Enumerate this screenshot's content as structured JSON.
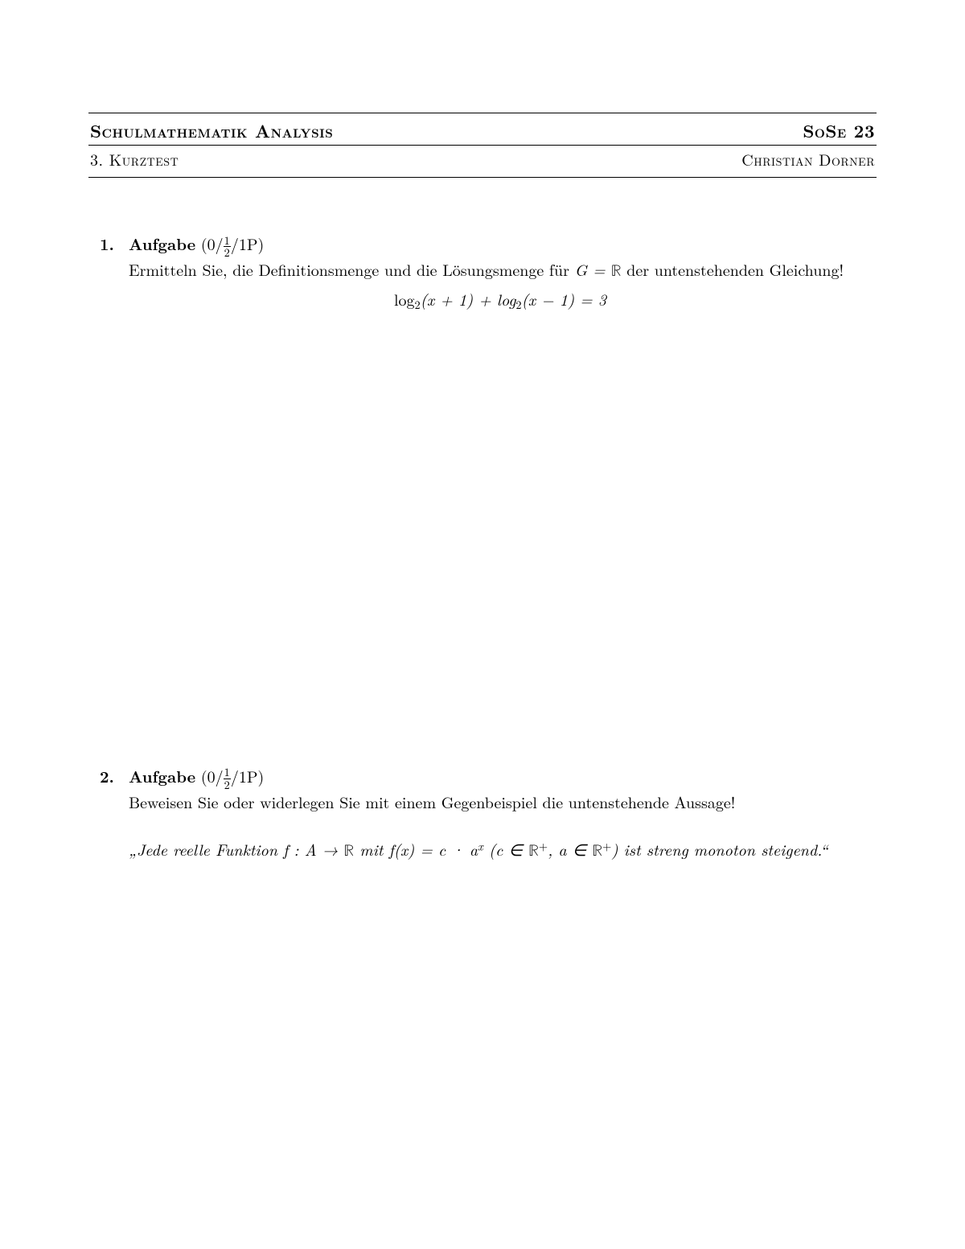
{
  "header": {
    "course": "Schulmathematik Analysis",
    "semester": "SoSe 23",
    "test": "3. Kurztest",
    "author": "Christian Dorner"
  },
  "tasks": [
    {
      "number": "1.",
      "label": "Aufgabe",
      "points_pre": "(0/",
      "points_frac_num": "1",
      "points_frac_den": "2",
      "points_post": "/1P)",
      "prompt_pre": "Ermitteln Sie, die Definitionsmenge und die Lösungsmenge für ",
      "prompt_math": "G = ",
      "prompt_set": "ℝ",
      "prompt_post": " der untenstehenden Gleichung!",
      "equation": "log",
      "eq_sub1": "2",
      "eq_mid1": "(x + 1) + log",
      "eq_sub2": "2",
      "eq_mid2": "(x − 1) = 3"
    },
    {
      "number": "2.",
      "label": "Aufgabe",
      "points_pre": "(0/",
      "points_frac_num": "1",
      "points_frac_den": "2",
      "points_post": "/1P)",
      "prompt": "Beweisen Sie oder widerlegen Sie mit einem Gegenbeispiel die untenstehende Aussage!",
      "quote_open": "„",
      "quote_t1": "Jede reelle Funktion ",
      "quote_math1": "f : A → ",
      "quote_set1": "ℝ",
      "quote_math2": " mit f(x) = c · a",
      "quote_exp": "x",
      "quote_math3": " (c ∈ ",
      "quote_set2": "ℝ",
      "quote_plus1": "+",
      "quote_math4": ", a ∈ ",
      "quote_set3": "ℝ",
      "quote_plus2": "+",
      "quote_math5": ") ist streng monoton steigend.",
      "quote_close": "“"
    }
  ]
}
